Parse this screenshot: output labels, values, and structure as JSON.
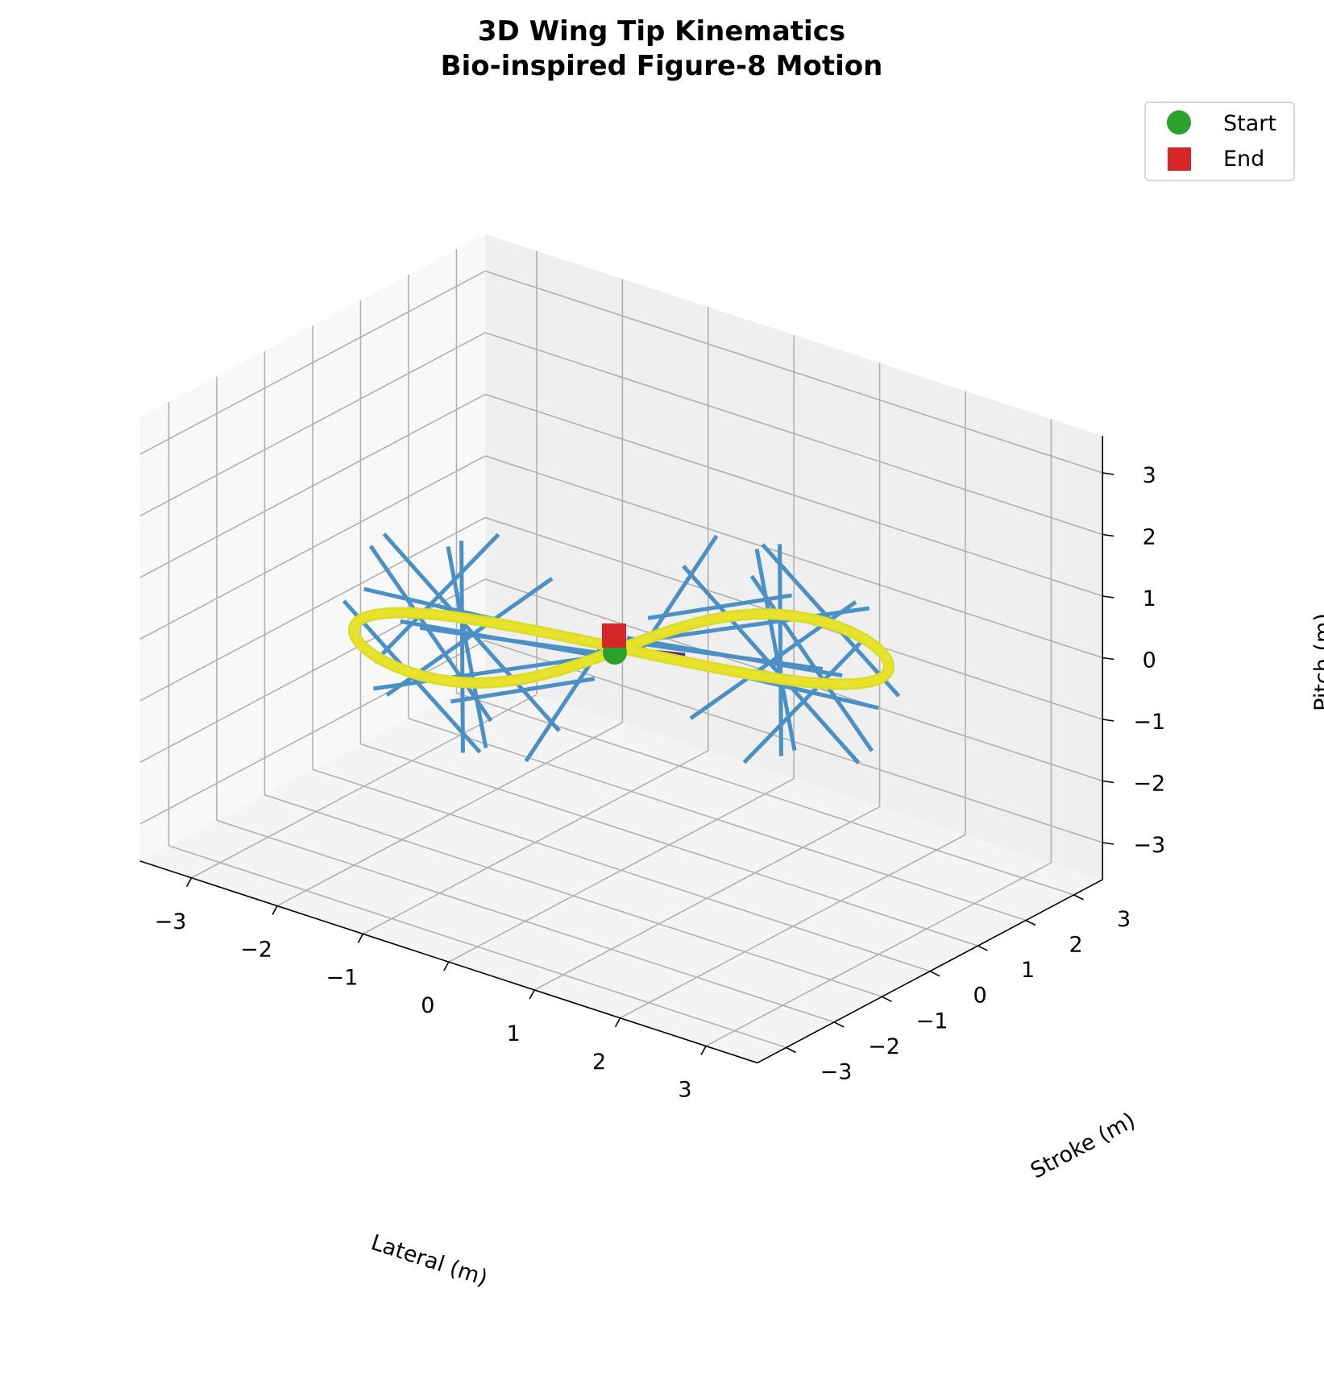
{
  "chart_data": {
    "type": "line",
    "projection": "3d",
    "title": "3D Wing Tip Kinematics",
    "subtitle": "Bio-inspired Figure-8 Motion",
    "xlabel": "Lateral (m)",
    "ylabel": "Stroke (m)",
    "zlabel": "Pitch (m)",
    "xlim": [
      -3.6,
      3.6
    ],
    "ylim": [
      -3.6,
      3.6
    ],
    "zlim": [
      -3.6,
      3.6
    ],
    "xticks": [
      "−3",
      "−2",
      "−1",
      "0",
      "1",
      "2",
      "3"
    ],
    "yticks": [
      "−3",
      "−2",
      "−1",
      "0",
      "1",
      "2",
      "3"
    ],
    "zticks": [
      "−3",
      "−2",
      "−1",
      "0",
      "1",
      "2",
      "3"
    ],
    "grid": true,
    "legend_position": "top-right",
    "legend": [
      {
        "label": "Start",
        "marker": "circle",
        "color": "#2ca02c"
      },
      {
        "label": "End",
        "marker": "square",
        "color": "#d62728"
      }
    ],
    "series": [
      {
        "kind": "figure-8 trajectory",
        "colormap": "viridis",
        "color": "#e8e32a",
        "x_amplitude": 3,
        "y_amplitude": 0.8,
        "z_amplitude": 2.2,
        "phase_offset_deg": 180
      },
      {
        "kind": "chord lines",
        "color": "#4a90c4",
        "segments": [
          [
            -3.0,
            0.0,
            -0.4,
            0.0,
            0.0,
            0.0
          ],
          [
            -2.9,
            -0.6,
            -0.3,
            -1.2,
            -0.8,
            -1.9
          ],
          [
            -2.8,
            0.4,
            -1.0,
            -0.4,
            0.6,
            -0.6
          ],
          [
            -2.5,
            -0.7,
            -1.5,
            -0.2,
            0.3,
            -0.3
          ],
          [
            -2.2,
            0.6,
            0.5,
            -1.4,
            -0.8,
            -2.0
          ],
          [
            -1.9,
            -0.8,
            -0.2,
            -0.1,
            0.1,
            -0.2
          ],
          [
            -1.6,
            0.3,
            1.0,
            -2.6,
            -0.5,
            -1.2
          ],
          [
            -1.3,
            -0.5,
            -2.0,
            -2.3,
            0.5,
            0.4
          ],
          [
            -1.0,
            -0.2,
            -2.2,
            -0.3,
            0.2,
            -0.1
          ],
          [
            -1.8,
            0.5,
            -2.2,
            -2.7,
            -0.4,
            0.6
          ],
          [
            -2.6,
            -0.3,
            0.8,
            -0.5,
            -0.4,
            -1.4
          ],
          [
            -1.2,
            0.7,
            0.3,
            -2.4,
            -0.6,
            -1.6
          ],
          [
            -2.1,
            0.2,
            -1.9,
            -0.2,
            -0.2,
            -0.5
          ],
          [
            3.0,
            0.0,
            0.4,
            0.0,
            0.0,
            0.0
          ],
          [
            2.9,
            0.6,
            0.3,
            1.2,
            0.8,
            1.9
          ],
          [
            2.8,
            -0.4,
            1.0,
            0.4,
            -0.6,
            0.6
          ],
          [
            2.5,
            0.7,
            1.5,
            0.2,
            -0.3,
            0.3
          ],
          [
            2.2,
            -0.6,
            -0.5,
            1.4,
            0.8,
            2.0
          ],
          [
            1.9,
            0.8,
            0.2,
            0.1,
            -0.1,
            0.2
          ],
          [
            1.6,
            -0.3,
            -1.0,
            2.6,
            0.5,
            1.2
          ],
          [
            1.3,
            0.5,
            2.0,
            2.3,
            -0.5,
            -0.4
          ],
          [
            1.0,
            0.2,
            2.2,
            0.3,
            -0.2,
            0.1
          ],
          [
            1.8,
            -0.5,
            2.2,
            2.7,
            0.4,
            -0.6
          ],
          [
            2.6,
            0.3,
            -0.8,
            0.5,
            0.4,
            1.4
          ],
          [
            1.2,
            -0.7,
            -0.3,
            2.4,
            0.6,
            1.6
          ],
          [
            2.1,
            -0.2,
            1.9,
            0.2,
            0.2,
            0.5
          ]
        ]
      }
    ],
    "markers": [
      {
        "label": "Start",
        "x": 0,
        "y": 0,
        "z": 0
      },
      {
        "label": "End",
        "x": 0,
        "y": 0,
        "z": 0
      }
    ]
  }
}
